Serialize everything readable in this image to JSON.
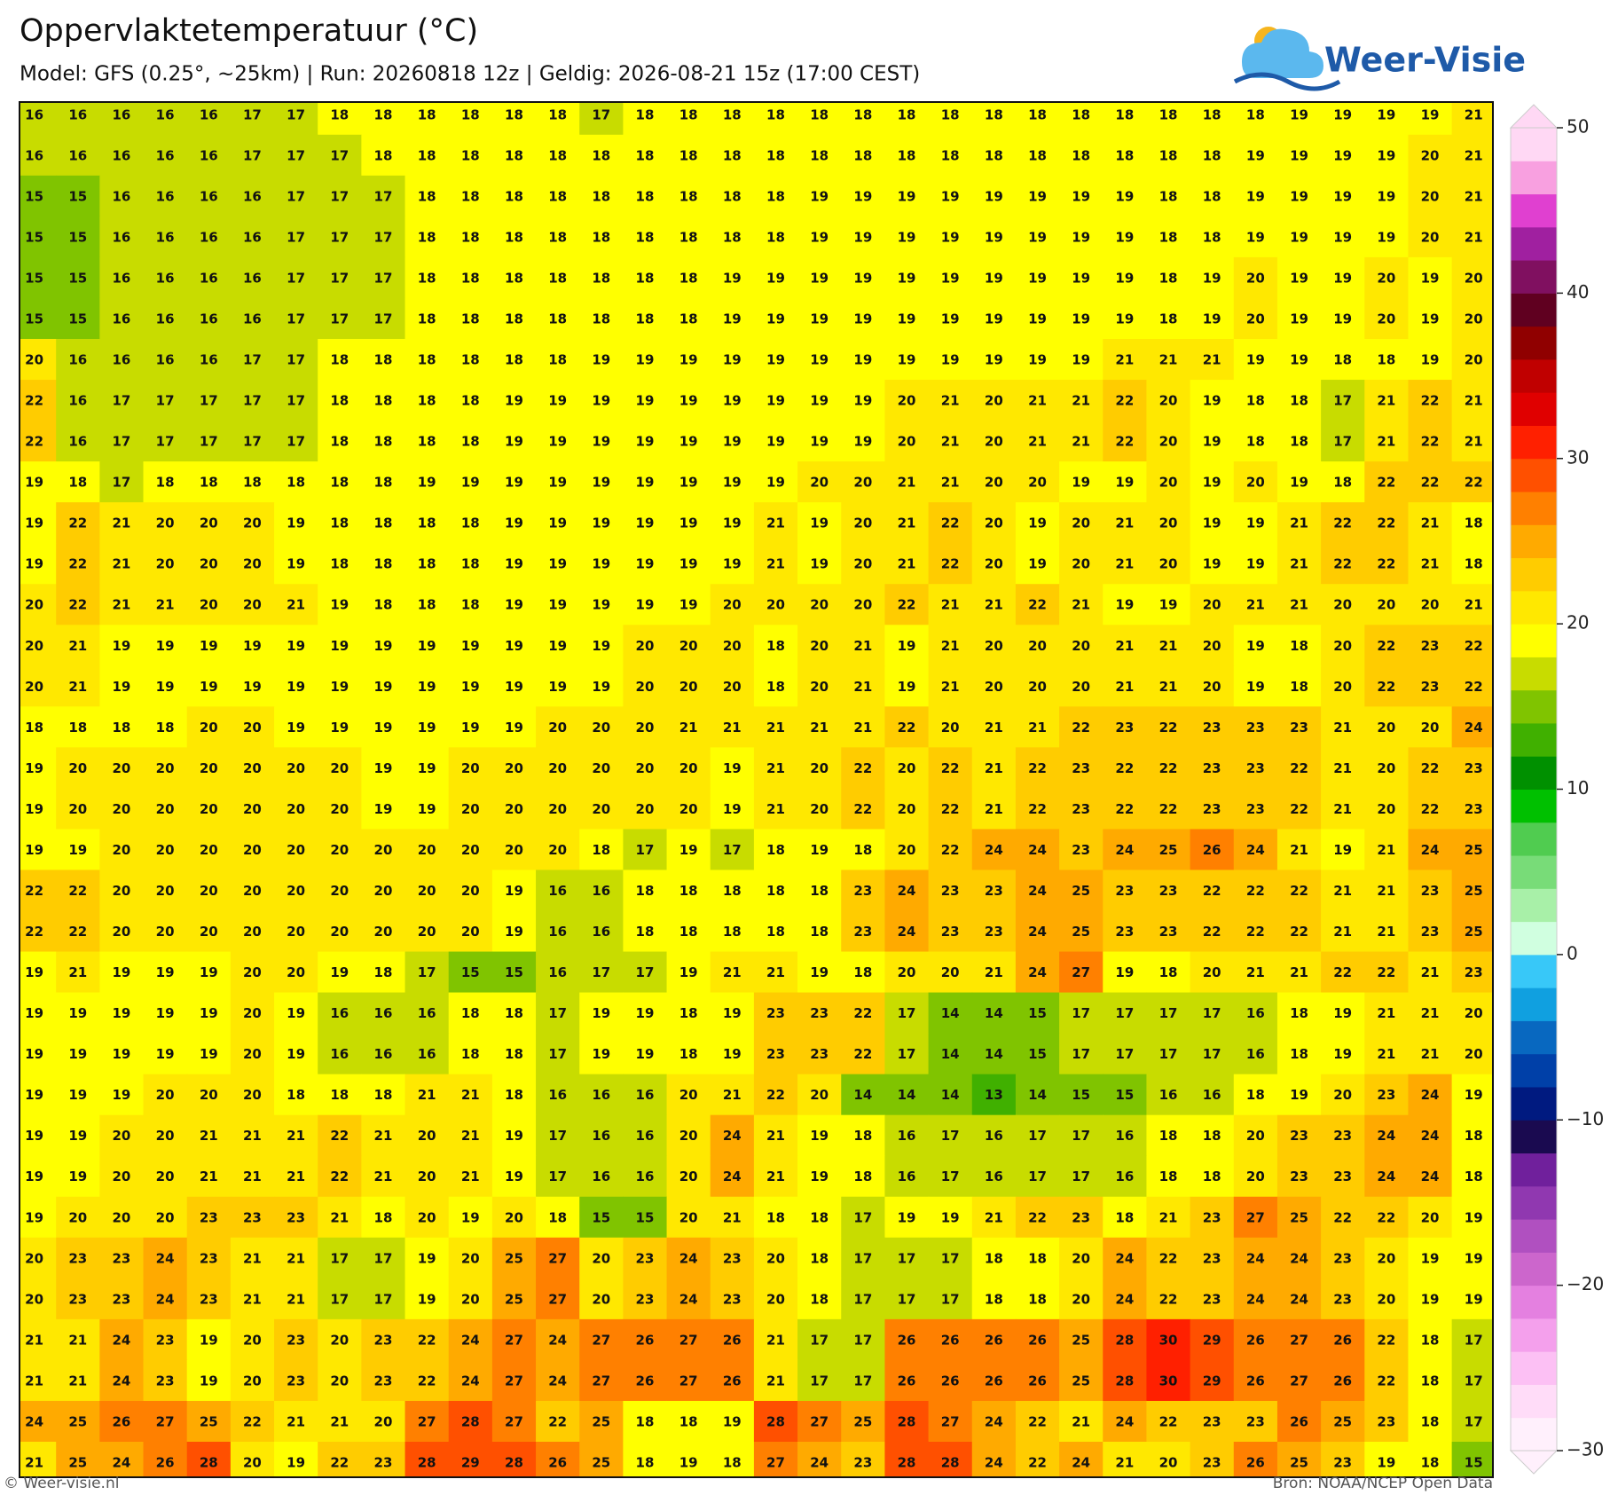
{
  "header": {
    "title": "Oppervlaktetemperatuur (°C)",
    "subtitle": "Model: GFS (0.25°, ~25km)  |  Run: 20260818 12z  |  Geldig: 2026-08-21 15z (17:00 CEST)"
  },
  "logo": "Weer-Visie",
  "grid": {
    "rows": [
      [
        16,
        16,
        16,
        16,
        16,
        17,
        17,
        18,
        18,
        18,
        18,
        18,
        18,
        17,
        18,
        18,
        18,
        18,
        18,
        18,
        18,
        18,
        18,
        18,
        18,
        18,
        18,
        18,
        18,
        19,
        19,
        19,
        19,
        21
      ],
      [
        16,
        16,
        16,
        16,
        16,
        17,
        17,
        17,
        18,
        18,
        18,
        18,
        18,
        18,
        18,
        18,
        18,
        18,
        18,
        18,
        18,
        18,
        18,
        18,
        18,
        18,
        18,
        18,
        19,
        19,
        19,
        19,
        20,
        21
      ],
      [
        15,
        15,
        16,
        16,
        16,
        16,
        17,
        17,
        17,
        18,
        18,
        18,
        18,
        18,
        18,
        18,
        18,
        18,
        19,
        19,
        19,
        19,
        19,
        19,
        19,
        19,
        18,
        18,
        19,
        19,
        19,
        19,
        20,
        21
      ],
      [
        15,
        15,
        16,
        16,
        16,
        16,
        17,
        17,
        17,
        18,
        18,
        18,
        18,
        18,
        18,
        18,
        18,
        18,
        19,
        19,
        19,
        19,
        19,
        19,
        19,
        19,
        18,
        18,
        19,
        19,
        19,
        19,
        20,
        21
      ],
      [
        15,
        15,
        16,
        16,
        16,
        16,
        17,
        17,
        17,
        18,
        18,
        18,
        18,
        18,
        18,
        18,
        19,
        19,
        19,
        19,
        19,
        19,
        19,
        19,
        19,
        19,
        18,
        19,
        20,
        19,
        19,
        20,
        19,
        20
      ],
      [
        15,
        15,
        16,
        16,
        16,
        16,
        17,
        17,
        17,
        18,
        18,
        18,
        18,
        18,
        18,
        18,
        19,
        19,
        19,
        19,
        19,
        19,
        19,
        19,
        19,
        19,
        18,
        19,
        20,
        19,
        19,
        20,
        19,
        20
      ],
      [
        20,
        16,
        16,
        16,
        16,
        17,
        17,
        18,
        18,
        18,
        18,
        18,
        18,
        19,
        19,
        19,
        19,
        19,
        19,
        19,
        19,
        19,
        19,
        19,
        19,
        21,
        21,
        21,
        19,
        19,
        18,
        18,
        19,
        20
      ],
      [
        22,
        16,
        17,
        17,
        17,
        17,
        17,
        18,
        18,
        18,
        18,
        19,
        19,
        19,
        19,
        19,
        19,
        19,
        19,
        19,
        20,
        21,
        20,
        21,
        21,
        22,
        20,
        19,
        18,
        18,
        17,
        21,
        22,
        21
      ],
      [
        22,
        16,
        17,
        17,
        17,
        17,
        17,
        18,
        18,
        18,
        18,
        19,
        19,
        19,
        19,
        19,
        19,
        19,
        19,
        19,
        20,
        21,
        20,
        21,
        21,
        22,
        20,
        19,
        18,
        18,
        17,
        21,
        22,
        21
      ],
      [
        19,
        18,
        17,
        18,
        18,
        18,
        18,
        18,
        18,
        19,
        19,
        19,
        19,
        19,
        19,
        19,
        19,
        19,
        20,
        20,
        21,
        21,
        20,
        20,
        19,
        19,
        20,
        19,
        20,
        19,
        18,
        22,
        22,
        22
      ],
      [
        19,
        22,
        21,
        20,
        20,
        20,
        19,
        18,
        18,
        18,
        18,
        19,
        19,
        19,
        19,
        19,
        19,
        21,
        19,
        20,
        21,
        22,
        20,
        19,
        20,
        21,
        20,
        19,
        19,
        21,
        22,
        22,
        21,
        18
      ],
      [
        19,
        22,
        21,
        20,
        20,
        20,
        19,
        18,
        18,
        18,
        18,
        19,
        19,
        19,
        19,
        19,
        19,
        21,
        19,
        20,
        21,
        22,
        20,
        19,
        20,
        21,
        20,
        19,
        19,
        21,
        22,
        22,
        21,
        18
      ],
      [
        20,
        22,
        21,
        21,
        20,
        20,
        21,
        19,
        18,
        18,
        18,
        19,
        19,
        19,
        19,
        19,
        20,
        20,
        20,
        20,
        22,
        21,
        21,
        22,
        21,
        19,
        19,
        20,
        21,
        21,
        20,
        20,
        20,
        21
      ],
      [
        20,
        21,
        19,
        19,
        19,
        19,
        19,
        19,
        19,
        19,
        19,
        19,
        19,
        19,
        20,
        20,
        20,
        18,
        20,
        21,
        19,
        21,
        20,
        20,
        20,
        21,
        21,
        20,
        19,
        18,
        20,
        22,
        23,
        22
      ],
      [
        20,
        21,
        19,
        19,
        19,
        19,
        19,
        19,
        19,
        19,
        19,
        19,
        19,
        19,
        20,
        20,
        20,
        18,
        20,
        21,
        19,
        21,
        20,
        20,
        20,
        21,
        21,
        20,
        19,
        18,
        20,
        22,
        23,
        22
      ],
      [
        18,
        18,
        18,
        18,
        20,
        20,
        19,
        19,
        19,
        19,
        19,
        19,
        20,
        20,
        20,
        21,
        21,
        21,
        21,
        21,
        22,
        20,
        21,
        21,
        22,
        23,
        22,
        23,
        23,
        23,
        21,
        20,
        20,
        24
      ],
      [
        19,
        20,
        20,
        20,
        20,
        20,
        20,
        20,
        19,
        19,
        20,
        20,
        20,
        20,
        20,
        20,
        19,
        21,
        20,
        22,
        20,
        22,
        21,
        22,
        23,
        22,
        22,
        23,
        23,
        22,
        21,
        20,
        22,
        23
      ],
      [
        19,
        20,
        20,
        20,
        20,
        20,
        20,
        20,
        19,
        19,
        20,
        20,
        20,
        20,
        20,
        20,
        19,
        21,
        20,
        22,
        20,
        22,
        21,
        22,
        23,
        22,
        22,
        23,
        23,
        22,
        21,
        20,
        22,
        23
      ],
      [
        19,
        19,
        20,
        20,
        20,
        20,
        20,
        20,
        20,
        20,
        20,
        20,
        20,
        18,
        17,
        19,
        17,
        18,
        19,
        18,
        20,
        22,
        24,
        24,
        23,
        24,
        25,
        26,
        24,
        21,
        19,
        21,
        24,
        25
      ],
      [
        22,
        22,
        20,
        20,
        20,
        20,
        20,
        20,
        20,
        20,
        20,
        19,
        16,
        16,
        18,
        18,
        18,
        18,
        18,
        23,
        24,
        23,
        23,
        24,
        25,
        23,
        23,
        22,
        22,
        22,
        21,
        21,
        23,
        25
      ],
      [
        22,
        22,
        20,
        20,
        20,
        20,
        20,
        20,
        20,
        20,
        20,
        19,
        16,
        16,
        18,
        18,
        18,
        18,
        18,
        23,
        24,
        23,
        23,
        24,
        25,
        23,
        23,
        22,
        22,
        22,
        21,
        21,
        23,
        25
      ],
      [
        19,
        21,
        19,
        19,
        19,
        20,
        20,
        19,
        18,
        17,
        15,
        15,
        16,
        17,
        17,
        19,
        21,
        21,
        19,
        18,
        20,
        20,
        21,
        24,
        27,
        19,
        18,
        20,
        21,
        21,
        22,
        22,
        21,
        23
      ],
      [
        19,
        19,
        19,
        19,
        19,
        20,
        19,
        16,
        16,
        16,
        18,
        18,
        17,
        19,
        19,
        18,
        19,
        23,
        23,
        22,
        17,
        14,
        14,
        15,
        17,
        17,
        17,
        17,
        16,
        18,
        19,
        21,
        21,
        20
      ],
      [
        19,
        19,
        19,
        19,
        19,
        20,
        19,
        16,
        16,
        16,
        18,
        18,
        17,
        19,
        19,
        18,
        19,
        23,
        23,
        22,
        17,
        14,
        14,
        15,
        17,
        17,
        17,
        17,
        16,
        18,
        19,
        21,
        21,
        20
      ],
      [
        19,
        19,
        19,
        20,
        20,
        20,
        18,
        18,
        18,
        21,
        21,
        18,
        16,
        16,
        16,
        20,
        21,
        22,
        20,
        14,
        14,
        14,
        13,
        14,
        15,
        15,
        16,
        16,
        18,
        19,
        20,
        23,
        24,
        19
      ],
      [
        19,
        19,
        20,
        20,
        21,
        21,
        21,
        22,
        21,
        20,
        21,
        19,
        17,
        16,
        16,
        20,
        24,
        21,
        19,
        18,
        16,
        17,
        16,
        17,
        17,
        16,
        18,
        18,
        20,
        23,
        23,
        24,
        24,
        18
      ],
      [
        19,
        19,
        20,
        20,
        21,
        21,
        21,
        22,
        21,
        20,
        21,
        19,
        17,
        16,
        16,
        20,
        24,
        21,
        19,
        18,
        16,
        17,
        16,
        17,
        17,
        16,
        18,
        18,
        20,
        23,
        23,
        24,
        24,
        18
      ],
      [
        19,
        20,
        20,
        20,
        23,
        23,
        23,
        21,
        18,
        20,
        19,
        20,
        18,
        15,
        15,
        20,
        21,
        18,
        18,
        17,
        19,
        19,
        21,
        22,
        23,
        18,
        21,
        23,
        27,
        25,
        22,
        22,
        20,
        19
      ],
      [
        20,
        23,
        23,
        24,
        23,
        21,
        21,
        17,
        17,
        19,
        20,
        25,
        27,
        20,
        23,
        24,
        23,
        20,
        18,
        17,
        17,
        17,
        18,
        18,
        20,
        24,
        22,
        23,
        24,
        24,
        23,
        20,
        19,
        19
      ],
      [
        20,
        23,
        23,
        24,
        23,
        21,
        21,
        17,
        17,
        19,
        20,
        25,
        27,
        20,
        23,
        24,
        23,
        20,
        18,
        17,
        17,
        17,
        18,
        18,
        20,
        24,
        22,
        23,
        24,
        24,
        23,
        20,
        19,
        19
      ],
      [
        21,
        21,
        24,
        23,
        19,
        20,
        23,
        20,
        23,
        22,
        24,
        27,
        24,
        27,
        26,
        27,
        26,
        21,
        17,
        17,
        26,
        26,
        26,
        26,
        25,
        28,
        30,
        29,
        26,
        27,
        26,
        22,
        18,
        17
      ],
      [
        21,
        21,
        24,
        23,
        19,
        20,
        23,
        20,
        23,
        22,
        24,
        27,
        24,
        27,
        26,
        27,
        26,
        21,
        17,
        17,
        26,
        26,
        26,
        26,
        25,
        28,
        30,
        29,
        26,
        27,
        26,
        22,
        18,
        17
      ],
      [
        24,
        25,
        26,
        27,
        25,
        22,
        21,
        21,
        20,
        27,
        28,
        27,
        22,
        25,
        18,
        18,
        19,
        28,
        27,
        25,
        28,
        27,
        24,
        22,
        21,
        24,
        22,
        23,
        23,
        26,
        25,
        23,
        18,
        17
      ],
      [
        21,
        25,
        24,
        26,
        28,
        20,
        19,
        22,
        23,
        28,
        29,
        28,
        26,
        25,
        18,
        19,
        18,
        27,
        24,
        23,
        28,
        28,
        24,
        22,
        24,
        21,
        20,
        23,
        26,
        25,
        23,
        19,
        18,
        15
      ]
    ]
  },
  "colorbar": {
    "lim": [
      -30,
      50
    ],
    "step": 2,
    "ticks": [
      50,
      40,
      30,
      20,
      10,
      0,
      {
        "value": -10,
        "label": "−10"
      },
      {
        "value": -20,
        "label": "−20"
      },
      {
        "value": -30,
        "label": "−30"
      }
    ],
    "colors": [
      "#fff0fc",
      "#ffdcf8",
      "#fcc0f4",
      "#f4a0ec",
      "#e480e0",
      "#cc66cc",
      "#b050c0",
      "#9038b0",
      "#70209c",
      "#1a0a50",
      "#001a80",
      "#0040a8",
      "#0868c0",
      "#10a0e0",
      "#38c8f8",
      "#d0ffe0",
      "#a8f0a8",
      "#78dc78",
      "#50cc50",
      "#00c000",
      "#009000",
      "#40b000",
      "#80c400",
      "#c8dc00",
      "#ffff00",
      "#ffe800",
      "#ffcc00",
      "#ffaa00",
      "#ff8000",
      "#ff5000",
      "#ff2000",
      "#e00000",
      "#c00000",
      "#900000",
      "#600020",
      "#801060",
      "#a020a0",
      "#e040d0",
      "#f8a0e0",
      "#ffd8f4"
    ]
  },
  "footer": {
    "left": "© Weer-visie.nl",
    "right": "Bron: NOAA/NCEP Open Data"
  }
}
